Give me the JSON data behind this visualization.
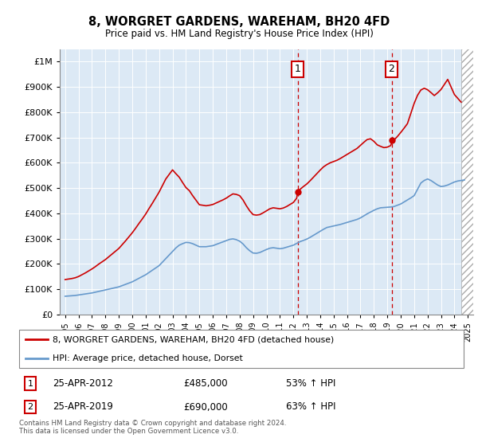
{
  "title": "8, WORGRET GARDENS, WAREHAM, BH20 4FD",
  "subtitle": "Price paid vs. HM Land Registry's House Price Index (HPI)",
  "ylim": [
    0,
    1050000
  ],
  "yticks": [
    0,
    100000,
    200000,
    300000,
    400000,
    500000,
    600000,
    700000,
    800000,
    900000,
    1000000
  ],
  "ytick_labels": [
    "£0",
    "£100K",
    "£200K",
    "£300K",
    "£400K",
    "£500K",
    "£600K",
    "£700K",
    "£800K",
    "£900K",
    "£1M"
  ],
  "sale1_year": 2012.32,
  "sale1_price": 485000,
  "sale1_label": "25-APR-2012",
  "sale1_text": "£485,000",
  "sale1_pct": "53% ↑ HPI",
  "sale2_year": 2019.32,
  "sale2_price": 690000,
  "sale2_label": "25-APR-2019",
  "sale2_text": "£690,000",
  "sale2_pct": "63% ↑ HPI",
  "property_color": "#cc0000",
  "hpi_color": "#6699cc",
  "plot_bg": "#dce9f5",
  "fig_bg": "#ffffff",
  "legend_label1": "8, WORGRET GARDENS, WAREHAM, BH20 4FD (detached house)",
  "legend_label2": "HPI: Average price, detached house, Dorset",
  "footer": "Contains HM Land Registry data © Crown copyright and database right 2024.\nThis data is licensed under the Open Government Licence v3.0.",
  "hpi_x": [
    1995.0,
    1995.25,
    1995.5,
    1995.75,
    1996.0,
    1996.25,
    1996.5,
    1996.75,
    1997.0,
    1997.25,
    1997.5,
    1997.75,
    1998.0,
    1998.25,
    1998.5,
    1998.75,
    1999.0,
    1999.25,
    1999.5,
    1999.75,
    2000.0,
    2000.25,
    2000.5,
    2000.75,
    2001.0,
    2001.25,
    2001.5,
    2001.75,
    2002.0,
    2002.25,
    2002.5,
    2002.75,
    2003.0,
    2003.25,
    2003.5,
    2003.75,
    2004.0,
    2004.25,
    2004.5,
    2004.75,
    2005.0,
    2005.25,
    2005.5,
    2005.75,
    2006.0,
    2006.25,
    2006.5,
    2006.75,
    2007.0,
    2007.25,
    2007.5,
    2007.75,
    2008.0,
    2008.25,
    2008.5,
    2008.75,
    2009.0,
    2009.25,
    2009.5,
    2009.75,
    2010.0,
    2010.25,
    2010.5,
    2010.75,
    2011.0,
    2011.25,
    2011.5,
    2011.75,
    2012.0,
    2012.25,
    2012.5,
    2012.75,
    2013.0,
    2013.25,
    2013.5,
    2013.75,
    2014.0,
    2014.25,
    2014.5,
    2014.75,
    2015.0,
    2015.25,
    2015.5,
    2015.75,
    2016.0,
    2016.25,
    2016.5,
    2016.75,
    2017.0,
    2017.25,
    2017.5,
    2017.75,
    2018.0,
    2018.25,
    2018.5,
    2018.75,
    2019.0,
    2019.25,
    2019.5,
    2019.75,
    2020.0,
    2020.25,
    2020.5,
    2020.75,
    2021.0,
    2021.25,
    2021.5,
    2021.75,
    2022.0,
    2022.25,
    2022.5,
    2022.75,
    2023.0,
    2023.25,
    2023.5,
    2023.75,
    2024.0,
    2024.25,
    2024.5,
    2024.75
  ],
  "hpi_y": [
    72000,
    73000,
    74000,
    75000,
    77000,
    79000,
    81000,
    83000,
    85000,
    88000,
    91000,
    94000,
    97000,
    100000,
    103000,
    106000,
    109000,
    114000,
    119000,
    124000,
    129000,
    136000,
    143000,
    150000,
    157000,
    166000,
    175000,
    184000,
    193000,
    207000,
    221000,
    235000,
    249000,
    263000,
    274000,
    280000,
    285000,
    284000,
    280000,
    274000,
    268000,
    268000,
    268000,
    270000,
    272000,
    277000,
    282000,
    287000,
    292000,
    297000,
    299000,
    296000,
    290000,
    279000,
    264000,
    252000,
    243000,
    242000,
    245000,
    251000,
    257000,
    262000,
    264000,
    262000,
    260000,
    262000,
    266000,
    270000,
    274000,
    281000,
    288000,
    293000,
    298000,
    305000,
    313000,
    321000,
    329000,
    337000,
    344000,
    347000,
    350000,
    353000,
    356000,
    360000,
    364000,
    368000,
    372000,
    376000,
    382000,
    390000,
    398000,
    405000,
    412000,
    418000,
    422000,
    423000,
    424000,
    425000,
    427000,
    432000,
    437000,
    445000,
    453000,
    461000,
    470000,
    495000,
    520000,
    530000,
    536000,
    530000,
    521000,
    512000,
    506000,
    508000,
    512000,
    518000,
    524000,
    528000,
    530000,
    532000
  ],
  "prop_x": [
    1995.0,
    1995.25,
    1995.5,
    1995.75,
    1996.0,
    1996.25,
    1996.5,
    1996.75,
    1997.0,
    1997.25,
    1997.5,
    1997.75,
    1998.0,
    1998.25,
    1998.5,
    1998.75,
    1999.0,
    1999.25,
    1999.5,
    1999.75,
    2000.0,
    2000.25,
    2000.5,
    2000.75,
    2001.0,
    2001.25,
    2001.5,
    2001.75,
    2002.0,
    2002.25,
    2002.5,
    2002.75,
    2003.0,
    2003.25,
    2003.5,
    2003.75,
    2004.0,
    2004.25,
    2004.5,
    2004.75,
    2005.0,
    2005.25,
    2005.5,
    2005.75,
    2006.0,
    2006.25,
    2006.5,
    2006.75,
    2007.0,
    2007.25,
    2007.5,
    2007.75,
    2008.0,
    2008.25,
    2008.5,
    2008.75,
    2009.0,
    2009.25,
    2009.5,
    2009.75,
    2010.0,
    2010.25,
    2010.5,
    2010.75,
    2011.0,
    2011.25,
    2011.5,
    2011.75,
    2012.0,
    2012.25,
    2012.32,
    2012.5,
    2012.75,
    2013.0,
    2013.25,
    2013.5,
    2013.75,
    2014.0,
    2014.25,
    2014.5,
    2014.75,
    2015.0,
    2015.25,
    2015.5,
    2015.75,
    2016.0,
    2016.25,
    2016.5,
    2016.75,
    2017.0,
    2017.25,
    2017.5,
    2017.75,
    2018.0,
    2018.25,
    2018.5,
    2018.75,
    2019.0,
    2019.25,
    2019.32,
    2019.5,
    2019.75,
    2020.0,
    2020.25,
    2020.5,
    2020.75,
    2021.0,
    2021.25,
    2021.5,
    2021.75,
    2022.0,
    2022.25,
    2022.5,
    2022.75,
    2023.0,
    2023.25,
    2023.5,
    2023.75,
    2024.0,
    2024.25,
    2024.5
  ],
  "prop_y": [
    138000,
    140000,
    142000,
    145000,
    150000,
    157000,
    164000,
    172000,
    180000,
    189000,
    199000,
    208000,
    217000,
    228000,
    239000,
    250000,
    261000,
    276000,
    291000,
    307000,
    323000,
    341000,
    360000,
    378000,
    397000,
    419000,
    440000,
    462000,
    484000,
    510000,
    536000,
    554000,
    572000,
    557000,
    543000,
    522000,
    502000,
    490000,
    470000,
    452000,
    434000,
    432000,
    430000,
    432000,
    435000,
    441000,
    447000,
    453000,
    460000,
    469000,
    477000,
    475000,
    470000,
    453000,
    430000,
    410000,
    395000,
    393000,
    395000,
    402000,
    410000,
    418000,
    422000,
    420000,
    418000,
    421000,
    427000,
    435000,
    443000,
    460000,
    485000,
    495000,
    506000,
    516000,
    529000,
    543000,
    557000,
    571000,
    584000,
    593000,
    600000,
    605000,
    610000,
    617000,
    625000,
    633000,
    641000,
    649000,
    657000,
    669000,
    681000,
    692000,
    695000,
    685000,
    671000,
    665000,
    660000,
    662000,
    668000,
    678000,
    690000,
    704000,
    720000,
    737000,
    755000,
    795000,
    835000,
    867000,
    888000,
    895000,
    889000,
    878000,
    866000,
    877000,
    890000,
    910000,
    930000,
    900000,
    870000,
    855000,
    840000
  ]
}
